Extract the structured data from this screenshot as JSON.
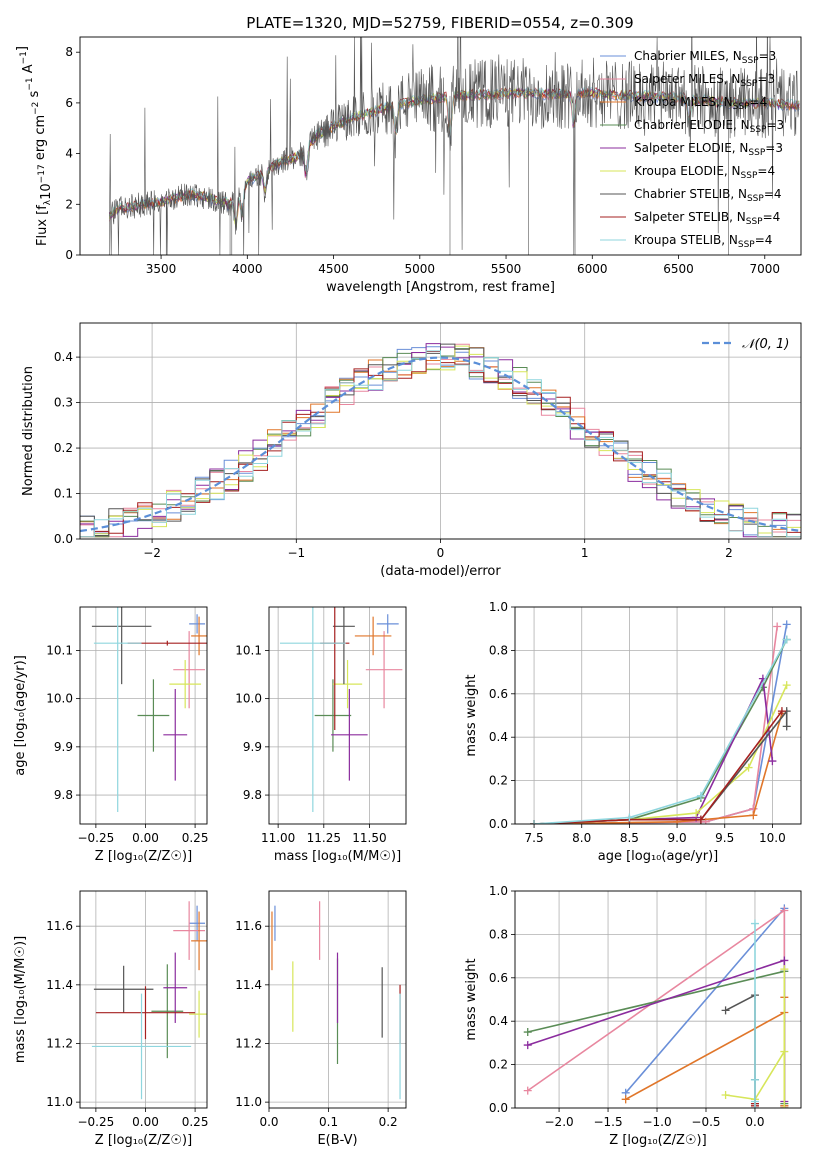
{
  "title": "PLATE=1320, MJD=52759, FIBERID=0554, z=0.309",
  "colors": {
    "Chabrier MILES": "#6a8fd8",
    "Salpeter MILES": "#e8879f",
    "Kroupa MILES": "#e0762a",
    "Chabrier ELODIE": "#5a8c56",
    "Salpeter ELODIE": "#8b2c9e",
    "Kroupa ELODIE": "#d7e65a",
    "Chabrier STELIB": "#555555",
    "Salpeter STELIB": "#a52020",
    "Kroupa STELIB": "#8fd6de",
    "gaussian": "#5b8fd8"
  },
  "chart_data": [
    {
      "id": "spectrum",
      "type": "line",
      "xlabel": "wavelength [Angstrom, rest frame]",
      "ylabel": "Flux [f",
      "xlim": [
        3030,
        7210
      ],
      "ylim": [
        0,
        8.6
      ],
      "xticks": [
        3500,
        4000,
        4500,
        5000,
        5500,
        6000,
        6500,
        7000
      ],
      "yticks": [
        0,
        2,
        4,
        6,
        8
      ],
      "legend_position": "top-right",
      "legend": [
        {
          "key": "Chabrier MILES",
          "label": "Chabrier MILES, N",
          "n": "=3"
        },
        {
          "key": "Salpeter MILES",
          "label": "Salpeter MILES, N",
          "n": "=3"
        },
        {
          "key": "Kroupa MILES",
          "label": "Kroupa MILES, N",
          "n": "=4"
        },
        {
          "key": "Chabrier ELODIE",
          "label": "Chabrier ELODIE, N",
          "n": "=3"
        },
        {
          "key": "Salpeter ELODIE",
          "label": "Salpeter ELODIE, N",
          "n": "=3"
        },
        {
          "key": "Kroupa ELODIE",
          "label": "Kroupa ELODIE, N",
          "n": "=4"
        },
        {
          "key": "Chabrier STELIB",
          "label": "Chabrier STELIB, N",
          "n": "=4"
        },
        {
          "key": "Salpeter STELIB",
          "label": "Salpeter STELIB, N",
          "n": "=4"
        },
        {
          "key": "Kroupa STELIB",
          "label": "Kroupa STELIB, N",
          "n": "=4"
        }
      ],
      "continuum": {
        "x": [
          3200,
          3250,
          3400,
          3500,
          3600,
          3700,
          3800,
          3900,
          4000,
          4100,
          4200,
          4300,
          4400,
          4500,
          4600,
          4700,
          4800,
          4900,
          5000,
          5200,
          5400,
          5600,
          5800,
          6000,
          6200,
          6500,
          6800,
          7000,
          7200
        ],
        "y": [
          1.55,
          1.8,
          2.0,
          2.1,
          2.3,
          2.4,
          2.2,
          2.0,
          2.9,
          3.3,
          3.7,
          3.9,
          4.7,
          5.1,
          5.4,
          5.6,
          5.8,
          6.0,
          6.1,
          6.3,
          6.35,
          6.4,
          6.35,
          6.4,
          6.3,
          6.2,
          6.0,
          6.0,
          5.9
        ]
      }
    },
    {
      "id": "residuals",
      "type": "line",
      "xlabel": "(data-model)/error",
      "ylabel": "Normed distribution",
      "xlim": [
        -2.5,
        2.5
      ],
      "ylim": [
        0,
        0.475
      ],
      "xticks": [
        -2,
        -1,
        0,
        1,
        2
      ],
      "yticks": [
        0.0,
        0.1,
        0.2,
        0.3,
        0.4
      ],
      "legend_position": "top-right",
      "legend_label": "𝒩(0, 1)",
      "bin_width": 0.1
    },
    {
      "id": "age_vs_Z",
      "type": "scatter",
      "xlabel": "Z [log₁₀(Z/Z☉)]",
      "ylabel": "age  [log₁₀(age/yr)]",
      "xlim": [
        -0.33,
        0.31
      ],
      "ylim": [
        9.74,
        10.19
      ],
      "xticks": [
        -0.25,
        0.0,
        0.25
      ],
      "yticks": [
        9.8,
        9.9,
        10.0,
        10.1
      ],
      "points": [
        {
          "key": "Chabrier MILES",
          "x": 0.26,
          "xerr": 0.04,
          "y": 10.155,
          "yerr": 0.02
        },
        {
          "key": "Salpeter MILES",
          "x": 0.22,
          "xerr": 0.08,
          "y": 10.06,
          "yerr": 0.08
        },
        {
          "key": "Kroupa MILES",
          "x": 0.27,
          "xerr": 0.04,
          "y": 10.13,
          "yerr": 0.04
        },
        {
          "key": "Chabrier ELODIE",
          "x": 0.04,
          "xerr": 0.08,
          "y": 9.965,
          "yerr": 0.075
        },
        {
          "key": "Salpeter ELODIE",
          "x": 0.15,
          "xerr": 0.06,
          "y": 9.925,
          "yerr": 0.095
        },
        {
          "key": "Kroupa ELODIE",
          "x": 0.2,
          "xerr": 0.08,
          "y": 10.03,
          "yerr": 0.05
        },
        {
          "key": "Chabrier STELIB",
          "x": -0.12,
          "xerr": 0.15,
          "y": 10.15,
          "yerr": 0.12
        },
        {
          "key": "Salpeter STELIB",
          "x": 0.11,
          "xerr": 0.2,
          "y": 10.115,
          "yerr": 0.005
        },
        {
          "key": "Kroupa STELIB",
          "x": -0.14,
          "xerr": 0.12,
          "y": 10.115,
          "yerr": 0.35
        }
      ]
    },
    {
      "id": "age_vs_mass",
      "type": "scatter",
      "xlabel": "mass [log₁₀(M/M☉)]",
      "ylabel": "",
      "xlim": [
        10.95,
        11.7
      ],
      "ylim": [
        9.74,
        10.19
      ],
      "xticks": [
        11.0,
        11.25,
        11.5
      ],
      "yticks": [
        9.8,
        9.9,
        10.0,
        10.1
      ],
      "points": [
        {
          "key": "Chabrier MILES",
          "x": 11.6,
          "xerr": 0.06,
          "y": 10.155,
          "yerr": 0.02
        },
        {
          "key": "Salpeter MILES",
          "x": 11.58,
          "xerr": 0.1,
          "y": 10.06,
          "yerr": 0.08
        },
        {
          "key": "Kroupa MILES",
          "x": 11.52,
          "xerr": 0.1,
          "y": 10.13,
          "yerr": 0.04
        },
        {
          "key": "Chabrier ELODIE",
          "x": 11.3,
          "xerr": 0.1,
          "y": 9.965,
          "yerr": 0.075
        },
        {
          "key": "Salpeter ELODIE",
          "x": 11.39,
          "xerr": 0.1,
          "y": 9.925,
          "yerr": 0.095
        },
        {
          "key": "Kroupa ELODIE",
          "x": 11.38,
          "xerr": 0.08,
          "y": 10.03,
          "yerr": 0.05
        },
        {
          "key": "Chabrier STELIB",
          "x": 11.36,
          "xerr": 0.06,
          "y": 10.15,
          "yerr": 0.12
        },
        {
          "key": "Salpeter STELIB",
          "x": 11.31,
          "xerr": 0.08,
          "y": 10.115,
          "yerr": 0.18
        },
        {
          "key": "Kroupa STELIB",
          "x": 11.19,
          "xerr": 0.18,
          "y": 10.115,
          "yerr": 0.35
        }
      ]
    },
    {
      "id": "mass_weight_vs_age",
      "type": "line",
      "xlabel": "age  [log₁₀(age/yr)]",
      "ylabel": "mass weight",
      "xlim": [
        7.3,
        10.3
      ],
      "ylim": [
        0,
        1
      ],
      "xticks": [
        7.5,
        8.0,
        8.5,
        9.0,
        9.5,
        10.0
      ],
      "yticks": [
        0.0,
        0.2,
        0.4,
        0.6,
        0.8,
        1.0
      ],
      "series": [
        {
          "key": "Chabrier MILES",
          "x": [
            7.5,
            9.3,
            9.8,
            10.15
          ],
          "y": [
            0.0,
            0.01,
            0.07,
            0.92
          ]
        },
        {
          "key": "Salpeter MILES",
          "x": [
            7.5,
            9.3,
            9.8,
            10.05
          ],
          "y": [
            0.0,
            0.01,
            0.07,
            0.91
          ]
        },
        {
          "key": "Kroupa MILES",
          "x": [
            7.5,
            9.0,
            9.8,
            10.1
          ],
          "y": [
            0.0,
            0.01,
            0.04,
            0.51
          ]
        },
        {
          "key": "Chabrier ELODIE",
          "x": [
            7.5,
            8.5,
            9.25,
            9.9,
            10.15
          ],
          "y": [
            0.0,
            0.02,
            0.12,
            0.63,
            0.85
          ]
        },
        {
          "key": "Salpeter ELODIE",
          "x": [
            7.5,
            8.5,
            9.2,
            9.9,
            10.0
          ],
          "y": [
            0.0,
            0.02,
            0.03,
            0.67,
            0.29
          ]
        },
        {
          "key": "Kroupa ELODIE",
          "x": [
            7.5,
            8.5,
            9.2,
            9.75,
            10.15
          ],
          "y": [
            0.0,
            0.02,
            0.05,
            0.26,
            0.64
          ]
        },
        {
          "key": "Chabrier STELIB",
          "x": [
            7.5,
            8.5,
            9.25,
            10.15,
            10.15
          ],
          "y": [
            0.0,
            0.02,
            0.02,
            0.52,
            0.45
          ]
        },
        {
          "key": "Salpeter STELIB",
          "x": [
            7.5,
            8.5,
            9.25,
            10.1
          ],
          "y": [
            0.0,
            0.02,
            0.02,
            0.52
          ]
        },
        {
          "key": "Kroupa STELIB",
          "x": [
            7.5,
            8.5,
            9.25,
            10.15
          ],
          "y": [
            0.0,
            0.03,
            0.13,
            0.85
          ]
        }
      ]
    },
    {
      "id": "mass_vs_Z",
      "type": "scatter",
      "xlabel": "Z [log₁₀(Z/Z☉)]",
      "ylabel": "mass [log₁₀(M/M☉)]",
      "xlim": [
        -0.33,
        0.31
      ],
      "ylim": [
        10.98,
        11.72
      ],
      "xticks": [
        -0.25,
        0.0,
        0.25
      ],
      "yticks": [
        11.0,
        11.2,
        11.4,
        11.6
      ],
      "points": [
        {
          "key": "Chabrier MILES",
          "x": 0.26,
          "xerr": 0.04,
          "y": 11.61,
          "yerr": 0.06
        },
        {
          "key": "Salpeter MILES",
          "x": 0.22,
          "xerr": 0.08,
          "y": 11.585,
          "yerr": 0.1
        },
        {
          "key": "Kroupa MILES",
          "x": 0.27,
          "xerr": 0.04,
          "y": 11.55,
          "yerr": 0.1
        },
        {
          "key": "Chabrier ELODIE",
          "x": 0.11,
          "xerr": 0.08,
          "y": 11.31,
          "yerr": 0.16
        },
        {
          "key": "Salpeter ELODIE",
          "x": 0.15,
          "xerr": 0.06,
          "y": 11.39,
          "yerr": 0.12
        },
        {
          "key": "Kroupa ELODIE",
          "x": 0.27,
          "xerr": 0.05,
          "y": 11.3,
          "yerr": 0.08
        },
        {
          "key": "Chabrier STELIB",
          "x": -0.11,
          "xerr": 0.15,
          "y": 11.385,
          "yerr": 0.08
        },
        {
          "key": "Salpeter STELIB",
          "x": 0.0,
          "xerr": 0.25,
          "y": 11.305,
          "yerr": 0.09
        },
        {
          "key": "Kroupa STELIB",
          "x": -0.02,
          "xerr": 0.25,
          "y": 11.19,
          "yerr": 0.18
        }
      ]
    },
    {
      "id": "mass_vs_EBV",
      "type": "scatter",
      "xlabel": "E(B-V)",
      "ylabel": "",
      "xlim": [
        0.0,
        0.23
      ],
      "ylim": [
        10.98,
        11.72
      ],
      "xticks": [
        0.0,
        0.1,
        0.2
      ],
      "yticks": [
        11.0,
        11.2,
        11.4,
        11.6
      ],
      "points": [
        {
          "key": "Chabrier MILES",
          "x": 0.01,
          "y": 11.61,
          "yerr": 0.06
        },
        {
          "key": "Salpeter MILES",
          "x": 0.085,
          "y": 11.585,
          "yerr": 0.1
        },
        {
          "key": "Kroupa MILES",
          "x": 0.005,
          "y": 11.55,
          "yerr": 0.1
        },
        {
          "key": "Chabrier ELODIE",
          "x": 0.115,
          "y": 11.31,
          "yerr": 0.18
        },
        {
          "key": "Salpeter ELODIE",
          "x": 0.115,
          "y": 11.39,
          "yerr": 0.12
        },
        {
          "key": "Kroupa ELODIE",
          "x": 0.04,
          "y": 11.36,
          "yerr": 0.12
        },
        {
          "key": "Chabrier STELIB",
          "x": 0.19,
          "y": 11.34,
          "yerr": 0.12
        },
        {
          "key": "Salpeter STELIB",
          "x": 0.22,
          "y": 11.3,
          "yerr": 0.1
        },
        {
          "key": "Kroupa STELIB",
          "x": 0.22,
          "y": 11.19,
          "yerr": 0.18
        }
      ]
    },
    {
      "id": "mass_weight_vs_Z",
      "type": "line",
      "xlabel": "Z [log₁₀(Z/Z☉)]",
      "ylabel": "mass weight",
      "xlim": [
        -2.45,
        0.47
      ],
      "ylim": [
        0,
        1
      ],
      "xticks": [
        -2.0,
        -1.5,
        -1.0,
        -0.5,
        0.0
      ],
      "yticks": [
        0.0,
        0.2,
        0.4,
        0.6,
        0.8,
        1.0
      ],
      "series": [
        {
          "key": "Chabrier MILES",
          "x": [
            -1.32,
            0.3,
            0.3,
            0.3
          ],
          "y": [
            0.07,
            0.92,
            0.01,
            0.0
          ]
        },
        {
          "key": "Salpeter MILES",
          "x": [
            -2.32,
            0.3,
            0.3
          ],
          "y": [
            0.08,
            0.91,
            0.01
          ]
        },
        {
          "key": "Kroupa MILES",
          "x": [
            -1.32,
            0.3,
            0.3,
            0.3,
            0.3
          ],
          "y": [
            0.04,
            0.44,
            0.51,
            0.01,
            0.0
          ]
        },
        {
          "key": "Chabrier ELODIE",
          "x": [
            -2.32,
            0.3,
            0.3
          ],
          "y": [
            0.35,
            0.63,
            0.02
          ]
        },
        {
          "key": "Salpeter ELODIE",
          "x": [
            -2.32,
            0.3,
            0.3,
            0.3
          ],
          "y": [
            0.29,
            0.68,
            0.03,
            0.0
          ]
        },
        {
          "key": "Kroupa ELODIE",
          "x": [
            -0.3,
            0.0,
            0.3,
            0.3,
            0.3
          ],
          "y": [
            0.06,
            0.04,
            0.26,
            0.64,
            0.0
          ]
        },
        {
          "key": "Chabrier STELIB",
          "x": [
            -0.3,
            0.0,
            0.0,
            0.0
          ],
          "y": [
            0.45,
            0.52,
            0.13,
            0.02
          ]
        },
        {
          "key": "Salpeter STELIB",
          "x": [
            0.0,
            0.0,
            0.0
          ],
          "y": [
            0.02,
            0.0,
            0.01
          ]
        },
        {
          "key": "Kroupa STELIB",
          "x": [
            0.0,
            0.0,
            0.0,
            0.0
          ],
          "y": [
            0.85,
            0.13,
            0.03,
            0.0
          ]
        }
      ]
    }
  ]
}
